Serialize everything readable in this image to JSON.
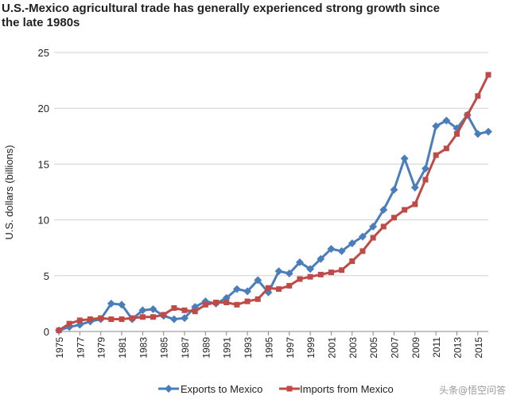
{
  "chart_data": {
    "type": "line",
    "title": "U.S.-Mexico agricultural trade has generally experienced strong growth since the late 1980s",
    "title_lines": [
      "U.S.-Mexico agricultural trade has generally experienced strong growth since",
      "the late 1980s"
    ],
    "ylabel": "U.S. dollars (billions)",
    "xlabel": "",
    "ylim": [
      0,
      25
    ],
    "yticks": [
      0,
      5,
      10,
      15,
      20,
      25
    ],
    "xlim": [
      1975,
      2016
    ],
    "xtick_labels": [
      "1975",
      "1977",
      "1979",
      "1981",
      "1983",
      "1985",
      "1987",
      "1989",
      "1991",
      "1993",
      "1995",
      "1997",
      "1999",
      "2001",
      "2003",
      "2005",
      "2007",
      "2009",
      "2011",
      "2013",
      "2015"
    ],
    "grid": "horizontal",
    "legend_position": "bottom",
    "x": [
      1975,
      1976,
      1977,
      1978,
      1979,
      1980,
      1981,
      1982,
      1983,
      1984,
      1985,
      1986,
      1987,
      1988,
      1989,
      1990,
      1991,
      1992,
      1993,
      1994,
      1995,
      1996,
      1997,
      1998,
      1999,
      2000,
      2001,
      2002,
      2003,
      2004,
      2005,
      2006,
      2007,
      2008,
      2009,
      2010,
      2011,
      2012,
      2013,
      2014,
      2015,
      2016
    ],
    "series": [
      {
        "name": "Exports to Mexico",
        "color": "#4a7ebb",
        "marker": "diamond",
        "values": [
          0.1,
          0.4,
          0.6,
          0.9,
          1.1,
          2.5,
          2.4,
          1.1,
          1.9,
          2.0,
          1.4,
          1.1,
          1.2,
          2.2,
          2.7,
          2.5,
          3.0,
          3.8,
          3.6,
          4.6,
          3.5,
          5.4,
          5.2,
          6.2,
          5.6,
          6.5,
          7.4,
          7.2,
          7.9,
          8.5,
          9.4,
          10.9,
          12.7,
          15.5,
          12.9,
          14.6,
          18.4,
          18.9,
          18.2,
          19.4,
          17.7,
          17.9
        ]
      },
      {
        "name": "Imports from Mexico",
        "color": "#be4b48",
        "marker": "square",
        "values": [
          0.1,
          0.7,
          1.0,
          1.1,
          1.2,
          1.1,
          1.1,
          1.2,
          1.3,
          1.3,
          1.5,
          2.1,
          1.9,
          1.8,
          2.4,
          2.6,
          2.6,
          2.4,
          2.7,
          2.9,
          3.9,
          3.8,
          4.1,
          4.7,
          4.9,
          5.1,
          5.3,
          5.5,
          6.3,
          7.2,
          8.4,
          9.4,
          10.2,
          10.9,
          11.4,
          13.6,
          15.8,
          16.4,
          17.7,
          19.4,
          21.1,
          23.0
        ]
      }
    ]
  },
  "watermark_text": "头条@悟空问答"
}
